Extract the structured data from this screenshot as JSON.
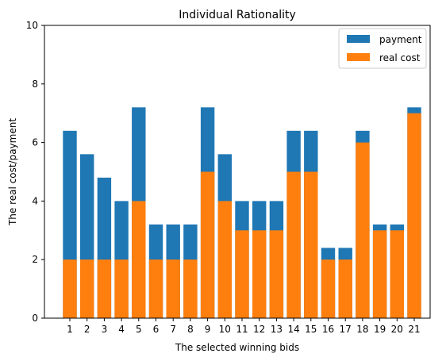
{
  "chart_data": {
    "type": "bar",
    "title": "Individual Rationality",
    "xlabel": "The selected winning bids",
    "ylabel": "The real cost/payment",
    "ylim": [
      0,
      10
    ],
    "yticks": [
      "0",
      "2",
      "4",
      "6",
      "8",
      "10"
    ],
    "categories": [
      "1",
      "2",
      "3",
      "4",
      "5",
      "6",
      "7",
      "8",
      "9",
      "10",
      "11",
      "12",
      "13",
      "14",
      "15",
      "16",
      "17",
      "18",
      "19",
      "20",
      "21"
    ],
    "series": [
      {
        "name": "payment",
        "color": "#1f77b4",
        "values": [
          6.4,
          5.6,
          4.8,
          4.0,
          7.2,
          3.2,
          3.2,
          3.2,
          7.2,
          5.6,
          4.0,
          4.0,
          4.0,
          6.4,
          6.4,
          2.4,
          2.4,
          6.4,
          3.2,
          3.2,
          7.2
        ]
      },
      {
        "name": "real cost",
        "color": "#ff7f0e",
        "values": [
          2,
          2,
          2,
          2,
          4,
          2,
          2,
          2,
          5,
          4,
          3,
          3,
          3,
          5,
          5,
          2,
          2,
          6,
          3,
          3,
          7
        ]
      }
    ],
    "legend_position": "top-right",
    "grid": false
  }
}
